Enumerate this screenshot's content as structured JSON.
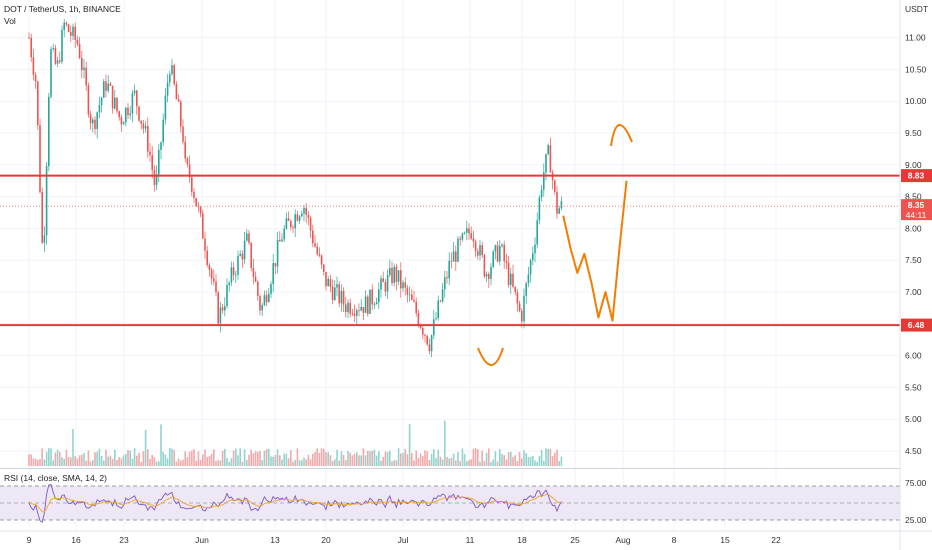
{
  "header": {
    "symbol_line": "DOT / TetherUS, 1h, BINANCE",
    "volume_label": "Vol"
  },
  "rsi_header": {
    "label": "RSI (14, close, SMA, 14, 2)"
  },
  "colors": {
    "up": "#26a69a",
    "down": "#ef5350",
    "level_line": "#e53935",
    "drawing": "#f57c00",
    "rsi_line": "#7e57c2",
    "rsi_ma": "#f5a623",
    "rsi_band": "#ede7f6"
  },
  "chart_data": [
    {
      "type": "candlestick",
      "title": "DOT / TetherUS, 1h, BINANCE",
      "y_axis_label": "USDT",
      "y_ticks": [
        "11.00",
        "10.50",
        "10.00",
        "9.50",
        "9.00",
        "8.50",
        "8.00",
        "7.50",
        "7.00",
        "6.50",
        "6.00",
        "5.50",
        "5.00",
        "4.50"
      ],
      "ylim": [
        4.2,
        11.45
      ],
      "x_ticks": [
        "9",
        "16",
        "23",
        "Jun",
        "13",
        "20",
        "Jul",
        "11",
        "18",
        "25",
        "Aug",
        "8",
        "15",
        "22"
      ],
      "price_path": [
        {
          "date": "May 9",
          "close": 11.0
        },
        {
          "date": "May 10",
          "close": 10.3
        },
        {
          "date": "May 11",
          "close": 7.4
        },
        {
          "date": "May 12",
          "close": 10.8
        },
        {
          "date": "May 13",
          "close": 10.5
        },
        {
          "date": "May 14",
          "close": 11.2
        },
        {
          "date": "May 16",
          "close": 10.9
        },
        {
          "date": "May 18",
          "close": 9.6
        },
        {
          "date": "May 20",
          "close": 10.3
        },
        {
          "date": "May 22",
          "close": 9.7
        },
        {
          "date": "May 24",
          "close": 10.1
        },
        {
          "date": "May 26",
          "close": 9.3
        },
        {
          "date": "May 27",
          "close": 8.6
        },
        {
          "date": "May 29",
          "close": 10.6
        },
        {
          "date": "May 31",
          "close": 9.4
        },
        {
          "date": "Jun 4",
          "close": 9.6
        },
        {
          "date": "Jun 6",
          "close": 9.4
        },
        {
          "date": "Jun 9",
          "close": 8.8
        },
        {
          "date": "Jun 11",
          "close": 7.8
        },
        {
          "date": "Jun 13",
          "close": 6.6
        },
        {
          "date": "Jun 15",
          "close": 7.3
        },
        {
          "date": "Jun 17",
          "close": 7.8
        },
        {
          "date": "Jun 19",
          "close": 6.7
        },
        {
          "date": "Jun 22",
          "close": 7.9
        },
        {
          "date": "Jun 25",
          "close": 8.4
        },
        {
          "date": "Jun 28",
          "close": 7.2
        },
        {
          "date": "Jul 1",
          "close": 6.8
        },
        {
          "date": "Jul 4",
          "close": 6.8
        },
        {
          "date": "Jul 8",
          "close": 7.3
        },
        {
          "date": "Jul 11",
          "close": 6.7
        },
        {
          "date": "Jul 13",
          "close": 6.2
        },
        {
          "date": "Jul 16",
          "close": 7.5
        },
        {
          "date": "Jul 19",
          "close": 8.0
        },
        {
          "date": "Jul 21",
          "close": 7.3
        },
        {
          "date": "Jul 23",
          "close": 7.7
        },
        {
          "date": "Jul 26",
          "close": 6.6
        },
        {
          "date": "Jul 28",
          "close": 7.9
        },
        {
          "date": "Jul 29",
          "close": 8.8
        },
        {
          "date": "Jul 30",
          "close": 9.2
        },
        {
          "date": "Jul 31",
          "close": 8.3
        },
        {
          "date": "Aug 1",
          "close": 8.35
        }
      ],
      "horizontal_levels": [
        {
          "value": 8.83,
          "label": "8.83"
        },
        {
          "value": 6.48,
          "label": "6.48"
        }
      ],
      "current_price": {
        "value": 8.35,
        "label": "8.35",
        "countdown": "44:11"
      },
      "projection_path": [
        {
          "date": "Aug 1",
          "value": 8.2
        },
        {
          "date": "Aug 2",
          "value": 7.7
        },
        {
          "date": "Aug 3",
          "value": 7.3
        },
        {
          "date": "Aug 4",
          "value": 7.6
        },
        {
          "date": "Aug 5",
          "value": 7.15
        },
        {
          "date": "Aug 6",
          "value": 6.6
        },
        {
          "date": "Aug 7",
          "value": 7.0
        },
        {
          "date": "Aug 8",
          "value": 6.55
        },
        {
          "date": "Aug 9",
          "value": 7.7
        },
        {
          "date": "Aug 10",
          "value": 8.75
        }
      ],
      "grid": true
    },
    {
      "type": "line",
      "title": "RSI (14, close, SMA, 14, 2)",
      "y_ticks": [
        "75.00",
        "25.00"
      ],
      "ylim": [
        15,
        88
      ],
      "band": [
        30,
        70
      ],
      "mid": 50
    }
  ]
}
